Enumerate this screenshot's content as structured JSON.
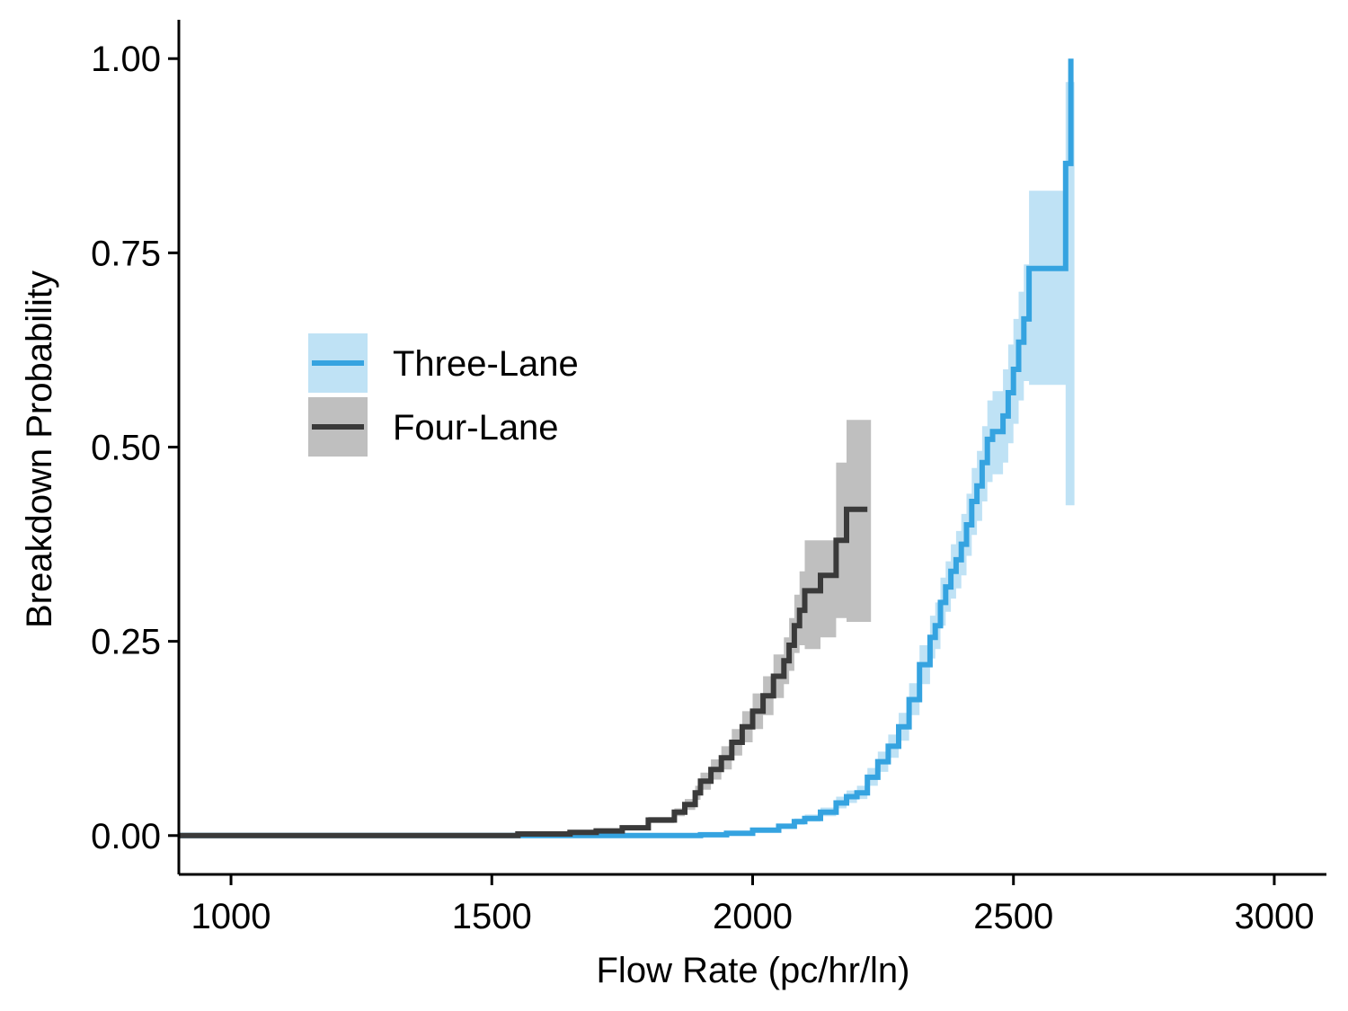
{
  "chart_data": {
    "type": "line",
    "xlabel": "Flow Rate (pc/hr/ln)",
    "ylabel": "Breakdown Probability",
    "xlim": [
      900,
      3100
    ],
    "ylim": [
      -0.05,
      1.05
    ],
    "x_ticks": [
      1000,
      1500,
      2000,
      2500,
      3000
    ],
    "x_tick_labels": [
      "1000",
      "1500",
      "2000",
      "2500",
      "3000"
    ],
    "y_ticks": [
      0,
      0.25,
      0.5,
      0.75,
      1.0
    ],
    "y_tick_labels": [
      "0.00",
      "0.25",
      "0.50",
      "0.75",
      "1.00"
    ],
    "grid": false,
    "legend_placement": "upper-left",
    "series": [
      {
        "name": "Three-Lane",
        "color": "#35a3e0",
        "band_color": "#bfe2f5",
        "step": true,
        "x": [
          900,
          1600,
          1900,
          1950,
          2000,
          2050,
          2080,
          2100,
          2130,
          2160,
          2180,
          2200,
          2220,
          2240,
          2260,
          2280,
          2300,
          2320,
          2340,
          2350,
          2360,
          2370,
          2380,
          2390,
          2400,
          2410,
          2420,
          2430,
          2440,
          2450,
          2460,
          2480,
          2490,
          2500,
          2510,
          2520,
          2530,
          2600,
          2610
        ],
        "y": [
          0,
          0,
          0.001,
          0.003,
          0.007,
          0.012,
          0.018,
          0.022,
          0.03,
          0.042,
          0.05,
          0.055,
          0.075,
          0.095,
          0.115,
          0.14,
          0.175,
          0.22,
          0.255,
          0.27,
          0.3,
          0.32,
          0.34,
          0.355,
          0.375,
          0.4,
          0.43,
          0.45,
          0.48,
          0.51,
          0.52,
          0.54,
          0.57,
          0.6,
          0.635,
          0.665,
          0.73,
          0.865,
          1.0
        ],
        "lower": [
          0,
          0,
          0,
          0.002,
          0.005,
          0.009,
          0.014,
          0.018,
          0.025,
          0.035,
          0.042,
          0.047,
          0.064,
          0.082,
          0.1,
          0.122,
          0.155,
          0.195,
          0.228,
          0.24,
          0.27,
          0.288,
          0.305,
          0.318,
          0.335,
          0.36,
          0.387,
          0.405,
          0.43,
          0.455,
          0.465,
          0.48,
          0.505,
          0.53,
          0.56,
          0.585,
          0.58,
          0.425,
          0.425
        ],
        "upper": [
          0,
          0,
          0.002,
          0.004,
          0.009,
          0.015,
          0.022,
          0.027,
          0.036,
          0.05,
          0.058,
          0.064,
          0.087,
          0.108,
          0.13,
          0.158,
          0.196,
          0.245,
          0.283,
          0.3,
          0.332,
          0.353,
          0.375,
          0.392,
          0.414,
          0.44,
          0.473,
          0.495,
          0.527,
          0.56,
          0.572,
          0.6,
          0.632,
          0.665,
          0.7,
          0.735,
          0.83,
          0.97,
          0.97
        ]
      },
      {
        "name": "Four-Lane",
        "color": "#3a3a3a",
        "band_color": "#bfbfbf",
        "step": true,
        "x": [
          900,
          1450,
          1550,
          1650,
          1700,
          1750,
          1800,
          1850,
          1870,
          1890,
          1900,
          1920,
          1940,
          1960,
          1980,
          2000,
          2020,
          2040,
          2060,
          2070,
          2080,
          2090,
          2100,
          2130,
          2160,
          2180,
          2220
        ],
        "y": [
          0,
          0,
          0.002,
          0.004,
          0.006,
          0.01,
          0.02,
          0.03,
          0.04,
          0.055,
          0.07,
          0.085,
          0.1,
          0.12,
          0.14,
          0.16,
          0.18,
          0.205,
          0.225,
          0.245,
          0.27,
          0.29,
          0.315,
          0.335,
          0.38,
          0.42,
          0.42
        ],
        "lower": [
          0,
          0,
          0.001,
          0.003,
          0.004,
          0.008,
          0.016,
          0.025,
          0.033,
          0.046,
          0.059,
          0.072,
          0.085,
          0.103,
          0.12,
          0.137,
          0.155,
          0.177,
          0.195,
          0.212,
          0.235,
          0.245,
          0.24,
          0.255,
          0.28,
          0.275,
          0.275
        ],
        "upper": [
          0,
          0,
          0.003,
          0.005,
          0.008,
          0.012,
          0.024,
          0.035,
          0.047,
          0.064,
          0.081,
          0.098,
          0.115,
          0.137,
          0.16,
          0.183,
          0.205,
          0.233,
          0.255,
          0.28,
          0.31,
          0.34,
          0.38,
          0.38,
          0.48,
          0.535,
          0.535
        ]
      }
    ]
  }
}
